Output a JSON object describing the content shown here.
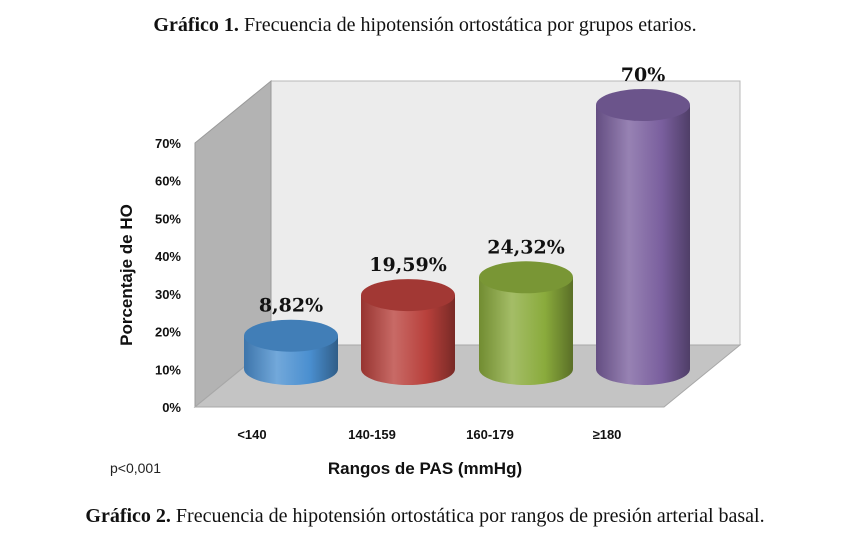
{
  "captions": {
    "top_bold": "Gráfico 1.",
    "top_rest": " Frecuencia de hipotensión ortostática por grupos etarios.",
    "bottom_bold": "Gráfico 2.",
    "bottom_rest": " Frecuencia de hipotensión ortostática por rangos de presión arterial basal."
  },
  "note": "p<0,001",
  "chart_data": {
    "type": "bar",
    "style": "3d-cylinder",
    "categories": [
      "<140",
      "140-159",
      "160-179",
      "≥180"
    ],
    "values": [
      8.82,
      19.59,
      24.32,
      70
    ],
    "data_labels": [
      "8,82%",
      "19,59%",
      "24,32%",
      "70%"
    ],
    "colors": [
      "#4a8fd0",
      "#b8403b",
      "#8aab3c",
      "#7a5f9e"
    ],
    "xlabel": "Rangos de PAS (mmHg)",
    "ylabel": "Porcentaje de HO",
    "ylim": [
      0,
      70
    ],
    "yticks": [
      "0%",
      "10%",
      "20%",
      "30%",
      "40%",
      "50%",
      "60%",
      "70%"
    ],
    "grid": false,
    "legend": "none"
  }
}
